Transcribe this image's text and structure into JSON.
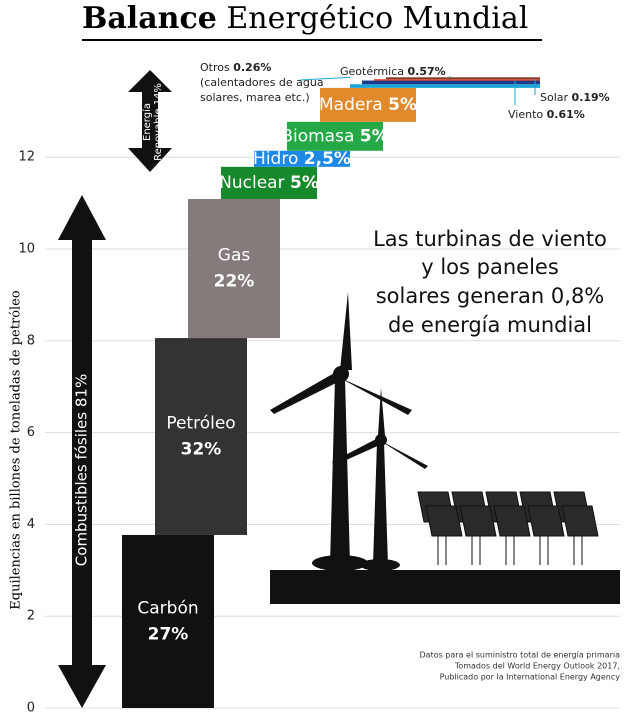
{
  "chart_data": {
    "type": "waterfall",
    "title_bold": "Balance",
    "title": "Energético Mundial",
    "y_label": "Equilencias en billones de toneladas de petróleo",
    "ylim": [
      0,
      14
    ],
    "yticks": [
      0,
      2,
      4,
      6,
      8,
      10,
      12
    ],
    "grid": true,
    "categories": [
      "Carbón",
      "Petróleo",
      "Gas",
      "Nuclear",
      "Hidro",
      "Biomasa",
      "Madera",
      "Geotérmica",
      "Viento",
      "Solar",
      "Otros"
    ],
    "values": [
      3.77,
      4.29,
      3.03,
      0.7,
      0.35,
      0.63,
      0.74,
      0.08,
      0.08,
      0.03,
      0.04
    ],
    "shares": [
      "27%",
      "32%",
      "22%",
      "5%",
      "2,5%",
      "5%",
      "5%",
      "0.57%",
      "0.61%",
      "0.19%",
      "0.26%"
    ],
    "colors": [
      "#111111",
      "#333333",
      "#857b7b",
      "#15892b",
      "#1e88e5",
      "#25a846",
      "#e08a2c",
      "#1aa7d8",
      "#1a3a8a",
      "#e0452c",
      "#7a3a2a"
    ],
    "others_note": [
      "(calentadores de agua",
      "solares, marea etc.)"
    ],
    "fossil_label": "Combustibles fósiles 81%",
    "renewable_label": [
      "Energía",
      "Renovable 14%"
    ],
    "annotation": [
      "Las turbinas de viento",
      "y los paneles",
      "solares generan 0,8%",
      "de energía mundial"
    ],
    "source": [
      "Datos para el suministro total de energía primaria",
      "Tomados del World Energy Outlook 2017,",
      "Publicado por la International Energy Agency"
    ]
  }
}
